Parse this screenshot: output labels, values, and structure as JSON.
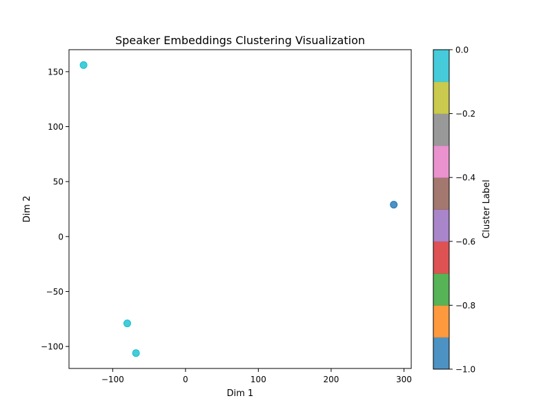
{
  "chart_data": {
    "type": "scatter",
    "title": "Speaker Embeddings Clustering Visualization",
    "xlabel": "Dim 1",
    "ylabel": "Dim 2",
    "xlim": [
      -160,
      310
    ],
    "ylim": [
      -120,
      170
    ],
    "xticks": [
      -100,
      0,
      100,
      200,
      300
    ],
    "yticks": [
      -100,
      -50,
      0,
      50,
      100,
      150
    ],
    "xtick_labels": [
      "−100",
      "0",
      "100",
      "200",
      "300"
    ],
    "ytick_labels": [
      "−100",
      "−50",
      "0",
      "50",
      "100",
      "150"
    ],
    "grid": false,
    "points": [
      {
        "x": -140,
        "y": 156,
        "cluster": 0,
        "color": "#17becf"
      },
      {
        "x": -80,
        "y": -79,
        "cluster": 0,
        "color": "#17becf"
      },
      {
        "x": -68,
        "y": -106,
        "cluster": 0,
        "color": "#17becf"
      },
      {
        "x": 286,
        "y": 29,
        "cluster": -1,
        "color": "#1f77b4"
      }
    ],
    "colorbar": {
      "label": "Cluster Label",
      "range": [
        -1.0,
        0.0
      ],
      "ticks": [
        0.0,
        -0.2,
        -0.4,
        -0.6,
        -0.8,
        -1.0
      ],
      "tick_labels": [
        "0.0",
        "−0.2",
        "−0.4",
        "−0.6",
        "−0.8",
        "−1.0"
      ],
      "colors_bottom_to_top": [
        "#1f77b4",
        "#ff7f0e",
        "#2ca02c",
        "#d62728",
        "#9467bd",
        "#8c564b",
        "#e377c2",
        "#7f7f7f",
        "#bcbd22",
        "#17becf"
      ]
    }
  }
}
